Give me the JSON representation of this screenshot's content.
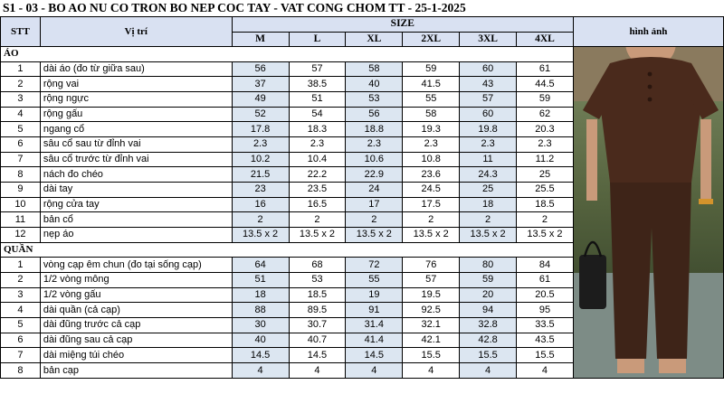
{
  "title": "S1 - 03 - BO AO NU CO TRON BO NEP COC TAY - VAT CONG CHOM TT - 25-1-2025",
  "header": {
    "stt": "STT",
    "position": "Vị trí",
    "size": "SIZE",
    "sizes": [
      "M",
      "L",
      "XL",
      "2XL",
      "3XL",
      "4XL"
    ],
    "image": "hình ảnh"
  },
  "sections": [
    {
      "name": "ÁO",
      "rows": [
        {
          "stt": "1",
          "pos": "dài áo (đo từ giữa sau)",
          "vals": [
            "56",
            "57",
            "58",
            "59",
            "60",
            "61"
          ]
        },
        {
          "stt": "2",
          "pos": "rộng vai",
          "vals": [
            "37",
            "38.5",
            "40",
            "41.5",
            "43",
            "44.5"
          ]
        },
        {
          "stt": "3",
          "pos": "rộng ngực",
          "vals": [
            "49",
            "51",
            "53",
            "55",
            "57",
            "59"
          ]
        },
        {
          "stt": "4",
          "pos": "rộng gấu",
          "vals": [
            "52",
            "54",
            "56",
            "58",
            "60",
            "62"
          ]
        },
        {
          "stt": "5",
          "pos": "ngang cổ",
          "vals": [
            "17.8",
            "18.3",
            "18.8",
            "19.3",
            "19.8",
            "20.3"
          ]
        },
        {
          "stt": "6",
          "pos": "sâu cổ sau từ đỉnh vai",
          "vals": [
            "2.3",
            "2.3",
            "2.3",
            "2.3",
            "2.3",
            "2.3"
          ]
        },
        {
          "stt": "7",
          "pos": "sâu cổ trước từ đỉnh vai",
          "vals": [
            "10.2",
            "10.4",
            "10.6",
            "10.8",
            "11",
            "11.2"
          ]
        },
        {
          "stt": "8",
          "pos": "nách đo chéo",
          "vals": [
            "21.5",
            "22.2",
            "22.9",
            "23.6",
            "24.3",
            "25"
          ]
        },
        {
          "stt": "9",
          "pos": "dài tay",
          "vals": [
            "23",
            "23.5",
            "24",
            "24.5",
            "25",
            "25.5"
          ]
        },
        {
          "stt": "10",
          "pos": "rộng cửa tay",
          "vals": [
            "16",
            "16.5",
            "17",
            "17.5",
            "18",
            "18.5"
          ]
        },
        {
          "stt": "11",
          "pos": "bản cổ",
          "vals": [
            "2",
            "2",
            "2",
            "2",
            "2",
            "2"
          ]
        },
        {
          "stt": "12",
          "pos": "nẹp áo",
          "vals": [
            "13.5 x 2",
            "13.5 x 2",
            "13.5 x 2",
            "13.5 x 2",
            "13.5 x 2",
            "13.5 x 2"
          ]
        }
      ]
    },
    {
      "name": "QUẦN",
      "rows": [
        {
          "stt": "1",
          "pos": "vòng cạp êm chun (đo tại sống cạp)",
          "vals": [
            "64",
            "68",
            "72",
            "76",
            "80",
            "84"
          ]
        },
        {
          "stt": "2",
          "pos": "1/2 vòng mông",
          "vals": [
            "51",
            "53",
            "55",
            "57",
            "59",
            "61"
          ]
        },
        {
          "stt": "3",
          "pos": "1/2 vòng gấu",
          "vals": [
            "18",
            "18.5",
            "19",
            "19.5",
            "20",
            "20.5"
          ]
        },
        {
          "stt": "4",
          "pos": "dài quần (cả cạp)",
          "vals": [
            "88",
            "89.5",
            "91",
            "92.5",
            "94",
            "95"
          ]
        },
        {
          "stt": "5",
          "pos": "dài đũng trước cả cạp",
          "vals": [
            "30",
            "30.7",
            "31.4",
            "32.1",
            "32.8",
            "33.5"
          ]
        },
        {
          "stt": "6",
          "pos": "dài đũng sau cả cạp",
          "vals": [
            "40",
            "40.7",
            "41.4",
            "42.1",
            "42.8",
            "43.5"
          ]
        },
        {
          "stt": "7",
          "pos": "dài miệng túi chéo",
          "vals": [
            "14.5",
            "14.5",
            "14.5",
            "15.5",
            "15.5",
            "15.5"
          ]
        },
        {
          "stt": "8",
          "pos": "bản cạp",
          "vals": [
            "4",
            "4",
            "4",
            "4",
            "4",
            "4"
          ]
        }
      ]
    }
  ],
  "colors": {
    "header_bg": "#d9e1f2",
    "value_shade": "#dce6f1",
    "garment": "#4a2a1c"
  },
  "image": {
    "icon": "product-photo-icon"
  }
}
